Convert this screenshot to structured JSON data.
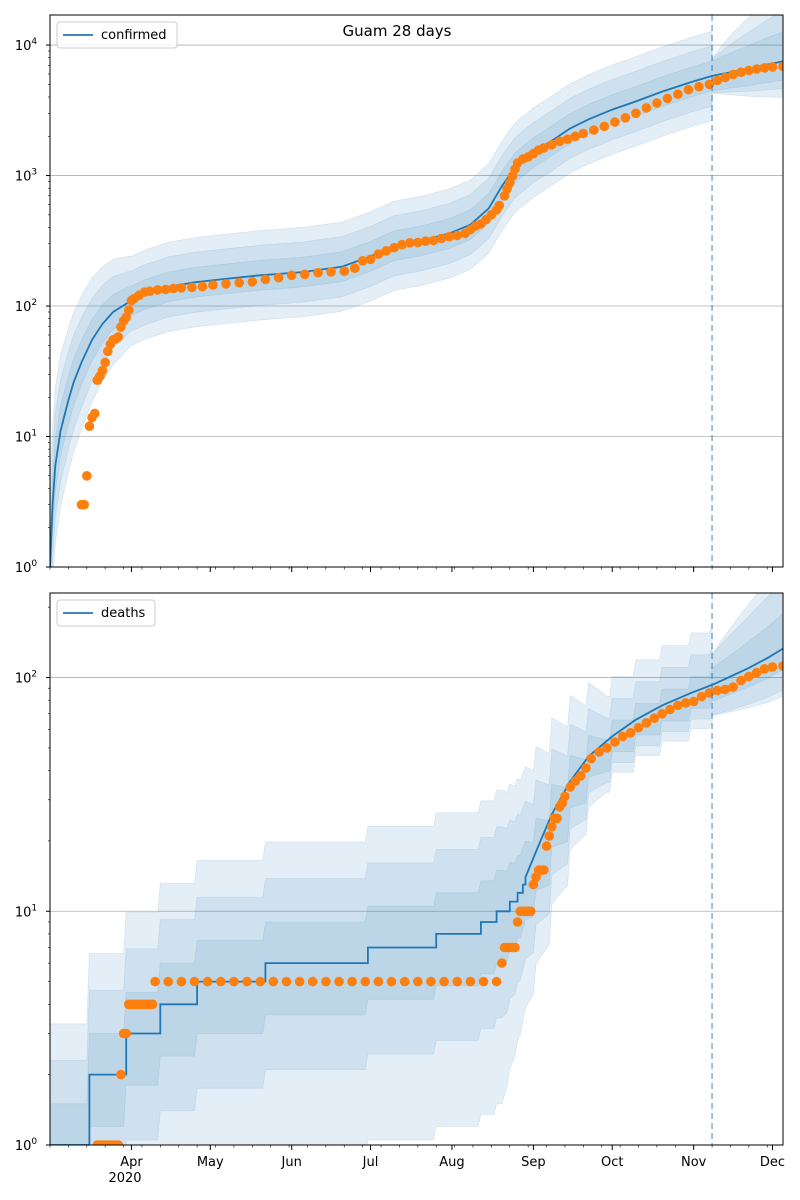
{
  "figure": {
    "title": "Guam 28 days"
  },
  "colors": {
    "model": "#1f77b4",
    "observed": "#ff7f0e",
    "band": "#1f77b4",
    "grid": "#b0b0b0",
    "forecast_line": "#1f77b4"
  },
  "chart_data": [
    {
      "type": "line",
      "legend": "confirmed",
      "legend_position": "top-left",
      "scale": "log",
      "ylim": [
        1,
        17000
      ],
      "xlim": [
        "2020-03-01",
        "2020-12-05"
      ],
      "yticks": [
        {
          "value": 1,
          "base": "10",
          "exp": "0"
        },
        {
          "value": 10,
          "base": "10",
          "exp": "1"
        },
        {
          "value": 100,
          "base": "10",
          "exp": "2"
        },
        {
          "value": 1000,
          "base": "10",
          "exp": "3"
        },
        {
          "value": 10000,
          "base": "10",
          "exp": "4"
        }
      ],
      "forecast_start": "2020-11-08",
      "model_series": [
        [
          "2020-03-01",
          1
        ],
        [
          "2020-03-02",
          3
        ],
        [
          "2020-03-03",
          6
        ],
        [
          "2020-03-05",
          11
        ],
        [
          "2020-03-08",
          19
        ],
        [
          "2020-03-10",
          26
        ],
        [
          "2020-03-13",
          37
        ],
        [
          "2020-03-17",
          55
        ],
        [
          "2020-03-21",
          73
        ],
        [
          "2020-03-25",
          90
        ],
        [
          "2020-03-31",
          107
        ],
        [
          "2020-04-06",
          122
        ],
        [
          "2020-04-15",
          140
        ],
        [
          "2020-04-25",
          152
        ],
        [
          "2020-05-05",
          160
        ],
        [
          "2020-05-20",
          172
        ],
        [
          "2020-06-05",
          182
        ],
        [
          "2020-06-20",
          200
        ],
        [
          "2020-07-01",
          240
        ],
        [
          "2020-07-10",
          290
        ],
        [
          "2020-07-20",
          315
        ],
        [
          "2020-07-31",
          360
        ],
        [
          "2020-08-08",
          420
        ],
        [
          "2020-08-15",
          560
        ],
        [
          "2020-08-20",
          830
        ],
        [
          "2020-08-25",
          1150
        ],
        [
          "2020-09-01",
          1500
        ],
        [
          "2020-09-08",
          1850
        ],
        [
          "2020-09-15",
          2300
        ],
        [
          "2020-09-22",
          2700
        ],
        [
          "2020-10-01",
          3200
        ],
        [
          "2020-10-10",
          3700
        ],
        [
          "2020-10-20",
          4400
        ],
        [
          "2020-10-31",
          5200
        ],
        [
          "2020-11-08",
          5800
        ]
      ],
      "forecast_median": [
        [
          "2020-11-08",
          5800
        ],
        [
          "2020-11-15",
          6200
        ],
        [
          "2020-11-22",
          6600
        ],
        [
          "2020-11-29",
          7100
        ],
        [
          "2020-12-05",
          7500
        ]
      ],
      "band_multipliers": [
        1.3,
        1.7,
        2.2
      ],
      "forecast_band_upper": [
        1.3,
        1.8,
        2.6
      ],
      "observed": [
        [
          "2020-03-13",
          3
        ],
        [
          "2020-03-14",
          3
        ],
        [
          "2020-03-15",
          5
        ],
        [
          "2020-03-16",
          12
        ],
        [
          "2020-03-17",
          14
        ],
        [
          "2020-03-18",
          15
        ],
        [
          "2020-03-19",
          27
        ],
        [
          "2020-03-20",
          29
        ],
        [
          "2020-03-21",
          32
        ],
        [
          "2020-03-22",
          37
        ],
        [
          "2020-03-23",
          45
        ],
        [
          "2020-03-24",
          51
        ],
        [
          "2020-03-25",
          55
        ],
        [
          "2020-03-26",
          56
        ],
        [
          "2020-03-27",
          58
        ],
        [
          "2020-03-28",
          69
        ],
        [
          "2020-03-29",
          77
        ],
        [
          "2020-03-30",
          82
        ],
        [
          "2020-03-31",
          93
        ],
        [
          "2020-04-01",
          110
        ],
        [
          "2020-04-02",
          114
        ],
        [
          "2020-04-04",
          121
        ],
        [
          "2020-04-06",
          128
        ],
        [
          "2020-04-08",
          130
        ],
        [
          "2020-04-11",
          133
        ],
        [
          "2020-04-14",
          134
        ],
        [
          "2020-04-17",
          136
        ],
        [
          "2020-04-20",
          138
        ],
        [
          "2020-04-24",
          139
        ],
        [
          "2020-04-28",
          141
        ],
        [
          "2020-05-02",
          145
        ],
        [
          "2020-05-07",
          148
        ],
        [
          "2020-05-12",
          151
        ],
        [
          "2020-05-17",
          153
        ],
        [
          "2020-05-22",
          160
        ],
        [
          "2020-05-27",
          165
        ],
        [
          "2020-06-01",
          172
        ],
        [
          "2020-06-06",
          175
        ],
        [
          "2020-06-11",
          180
        ],
        [
          "2020-06-16",
          183
        ],
        [
          "2020-06-21",
          185
        ],
        [
          "2020-06-25",
          195
        ],
        [
          "2020-06-28",
          222
        ],
        [
          "2020-07-01",
          228
        ],
        [
          "2020-07-04",
          250
        ],
        [
          "2020-07-07",
          265
        ],
        [
          "2020-07-10",
          280
        ],
        [
          "2020-07-13",
          295
        ],
        [
          "2020-07-16",
          305
        ],
        [
          "2020-07-19",
          307
        ],
        [
          "2020-07-22",
          314
        ],
        [
          "2020-07-25",
          318
        ],
        [
          "2020-07-28",
          330
        ],
        [
          "2020-07-31",
          340
        ],
        [
          "2020-08-03",
          348
        ],
        [
          "2020-08-06",
          360
        ],
        [
          "2020-08-08",
          385
        ],
        [
          "2020-08-10",
          410
        ],
        [
          "2020-08-12",
          425
        ],
        [
          "2020-08-14",
          460
        ],
        [
          "2020-08-16",
          500
        ],
        [
          "2020-08-18",
          545
        ],
        [
          "2020-08-19",
          590
        ],
        [
          "2020-08-21",
          700
        ],
        [
          "2020-08-22",
          790
        ],
        [
          "2020-08-23",
          880
        ],
        [
          "2020-08-24",
          990
        ],
        [
          "2020-08-25",
          1120
        ],
        [
          "2020-08-26",
          1250
        ],
        [
          "2020-08-28",
          1340
        ],
        [
          "2020-08-30",
          1390
        ],
        [
          "2020-09-01",
          1470
        ],
        [
          "2020-09-03",
          1570
        ],
        [
          "2020-09-05",
          1630
        ],
        [
          "2020-09-08",
          1720
        ],
        [
          "2020-09-11",
          1830
        ],
        [
          "2020-09-14",
          1900
        ],
        [
          "2020-09-17",
          2000
        ],
        [
          "2020-09-20",
          2100
        ],
        [
          "2020-09-24",
          2230
        ],
        [
          "2020-09-28",
          2380
        ],
        [
          "2020-10-02",
          2570
        ],
        [
          "2020-10-06",
          2770
        ],
        [
          "2020-10-10",
          3000
        ],
        [
          "2020-10-14",
          3300
        ],
        [
          "2020-10-18",
          3600
        ],
        [
          "2020-10-22",
          3900
        ],
        [
          "2020-10-26",
          4200
        ],
        [
          "2020-10-30",
          4550
        ],
        [
          "2020-11-03",
          4800
        ],
        [
          "2020-11-07",
          5000
        ],
        [
          "2020-11-10",
          5350
        ],
        [
          "2020-11-13",
          5650
        ],
        [
          "2020-11-16",
          5950
        ],
        [
          "2020-11-19",
          6200
        ],
        [
          "2020-11-22",
          6400
        ],
        [
          "2020-11-25",
          6550
        ],
        [
          "2020-11-28",
          6700
        ],
        [
          "2020-12-01",
          6800
        ],
        [
          "2020-12-05",
          6850
        ]
      ]
    },
    {
      "type": "line",
      "legend": "deaths",
      "legend_position": "top-left",
      "scale": "log",
      "ylim": [
        1,
        230
      ],
      "xlim": [
        "2020-03-01",
        "2020-12-05"
      ],
      "yticks": [
        {
          "value": 1,
          "base": "10",
          "exp": "0"
        },
        {
          "value": 10,
          "base": "10",
          "exp": "1"
        },
        {
          "value": 100,
          "base": "10",
          "exp": "2"
        }
      ],
      "xticks": [
        "Apr",
        "May",
        "Jun",
        "Jul",
        "Aug",
        "Sep",
        "Oct",
        "Nov",
        "Dec"
      ],
      "xtick_year": "2020",
      "forecast_start": "2020-11-08",
      "model_steps": [
        [
          "2020-03-01",
          1
        ],
        [
          "2020-03-16",
          2
        ],
        [
          "2020-03-30",
          3
        ],
        [
          "2020-04-12",
          4
        ],
        [
          "2020-04-26",
          5
        ],
        [
          "2020-05-22",
          6
        ],
        [
          "2020-06-30",
          7
        ],
        [
          "2020-07-26",
          8
        ],
        [
          "2020-08-12",
          9
        ],
        [
          "2020-08-18",
          10
        ],
        [
          "2020-08-23",
          11
        ],
        [
          "2020-08-26",
          12
        ],
        [
          "2020-08-28",
          13
        ],
        [
          "2020-08-29",
          14
        ]
      ],
      "model_series": [
        [
          "2020-08-29",
          14
        ],
        [
          "2020-09-02",
          18
        ],
        [
          "2020-09-08",
          26
        ],
        [
          "2020-09-15",
          36
        ],
        [
          "2020-09-22",
          46
        ],
        [
          "2020-10-01",
          56
        ],
        [
          "2020-10-10",
          66
        ],
        [
          "2020-10-20",
          76
        ],
        [
          "2020-10-31",
          86
        ],
        [
          "2020-11-08",
          93
        ]
      ],
      "forecast_median": [
        [
          "2020-11-08",
          93
        ],
        [
          "2020-11-15",
          101
        ],
        [
          "2020-11-22",
          110
        ],
        [
          "2020-11-29",
          121
        ],
        [
          "2020-12-05",
          133
        ]
      ],
      "band_lower_multipliers": [
        0.6,
        0.35,
        0.15
      ],
      "band_upper_multipliers": [
        1.5,
        2.3,
        3.3
      ],
      "forecast_band_upper": [
        1.2,
        1.45,
        1.75
      ],
      "observed": [
        [
          "2020-03-19",
          1
        ],
        [
          "2020-03-20",
          1
        ],
        [
          "2020-03-21",
          1
        ],
        [
          "2020-03-22",
          1
        ],
        [
          "2020-03-23",
          1
        ],
        [
          "2020-03-24",
          1
        ],
        [
          "2020-03-25",
          1
        ],
        [
          "2020-03-26",
          1
        ],
        [
          "2020-03-27",
          1
        ],
        [
          "2020-03-28",
          2
        ],
        [
          "2020-03-29",
          3
        ],
        [
          "2020-03-30",
          3
        ],
        [
          "2020-03-31",
          4
        ],
        [
          "2020-04-01",
          4
        ],
        [
          "2020-04-02",
          4
        ],
        [
          "2020-04-03",
          4
        ],
        [
          "2020-04-04",
          4
        ],
        [
          "2020-04-05",
          4
        ],
        [
          "2020-04-06",
          4
        ],
        [
          "2020-04-07",
          4
        ],
        [
          "2020-04-08",
          4
        ],
        [
          "2020-04-09",
          4
        ],
        [
          "2020-04-10",
          5
        ],
        [
          "2020-04-15",
          5
        ],
        [
          "2020-04-20",
          5
        ],
        [
          "2020-04-25",
          5
        ],
        [
          "2020-04-30",
          5
        ],
        [
          "2020-05-05",
          5
        ],
        [
          "2020-05-10",
          5
        ],
        [
          "2020-05-15",
          5
        ],
        [
          "2020-05-20",
          5
        ],
        [
          "2020-05-25",
          5
        ],
        [
          "2020-05-30",
          5
        ],
        [
          "2020-06-04",
          5
        ],
        [
          "2020-06-09",
          5
        ],
        [
          "2020-06-14",
          5
        ],
        [
          "2020-06-19",
          5
        ],
        [
          "2020-06-24",
          5
        ],
        [
          "2020-06-29",
          5
        ],
        [
          "2020-07-04",
          5
        ],
        [
          "2020-07-09",
          5
        ],
        [
          "2020-07-14",
          5
        ],
        [
          "2020-07-19",
          5
        ],
        [
          "2020-07-24",
          5
        ],
        [
          "2020-07-29",
          5
        ],
        [
          "2020-08-03",
          5
        ],
        [
          "2020-08-08",
          5
        ],
        [
          "2020-08-13",
          5
        ],
        [
          "2020-08-18",
          5
        ],
        [
          "2020-08-20",
          6
        ],
        [
          "2020-08-21",
          7
        ],
        [
          "2020-08-22",
          7
        ],
        [
          "2020-08-23",
          7
        ],
        [
          "2020-08-24",
          7
        ],
        [
          "2020-08-25",
          7
        ],
        [
          "2020-08-26",
          9
        ],
        [
          "2020-08-27",
          10
        ],
        [
          "2020-08-28",
          10
        ],
        [
          "2020-08-29",
          10
        ],
        [
          "2020-08-30",
          10
        ],
        [
          "2020-08-31",
          10
        ],
        [
          "2020-09-01",
          13
        ],
        [
          "2020-09-02",
          14
        ],
        [
          "2020-09-03",
          15
        ],
        [
          "2020-09-04",
          15
        ],
        [
          "2020-09-05",
          15
        ],
        [
          "2020-09-06",
          19
        ],
        [
          "2020-09-07",
          21
        ],
        [
          "2020-09-08",
          23
        ],
        [
          "2020-09-09",
          25
        ],
        [
          "2020-09-10",
          25
        ],
        [
          "2020-09-11",
          28
        ],
        [
          "2020-09-12",
          29
        ],
        [
          "2020-09-13",
          31
        ],
        [
          "2020-09-15",
          34
        ],
        [
          "2020-09-17",
          36
        ],
        [
          "2020-09-19",
          38
        ],
        [
          "2020-09-21",
          41
        ],
        [
          "2020-09-23",
          45
        ],
        [
          "2020-09-26",
          48
        ],
        [
          "2020-09-29",
          50
        ],
        [
          "2020-10-02",
          53
        ],
        [
          "2020-10-05",
          56
        ],
        [
          "2020-10-08",
          58
        ],
        [
          "2020-10-11",
          61
        ],
        [
          "2020-10-14",
          64
        ],
        [
          "2020-10-17",
          67
        ],
        [
          "2020-10-20",
          70
        ],
        [
          "2020-10-23",
          73
        ],
        [
          "2020-10-26",
          76
        ],
        [
          "2020-10-29",
          78
        ],
        [
          "2020-11-01",
          79
        ],
        [
          "2020-11-04",
          83
        ],
        [
          "2020-11-07",
          86
        ],
        [
          "2020-11-10",
          88
        ],
        [
          "2020-11-13",
          89
        ],
        [
          "2020-11-16",
          91
        ],
        [
          "2020-11-19",
          97
        ],
        [
          "2020-11-22",
          101
        ],
        [
          "2020-11-25",
          105
        ],
        [
          "2020-11-28",
          109
        ],
        [
          "2020-12-01",
          111
        ],
        [
          "2020-12-05",
          112
        ]
      ]
    }
  ]
}
